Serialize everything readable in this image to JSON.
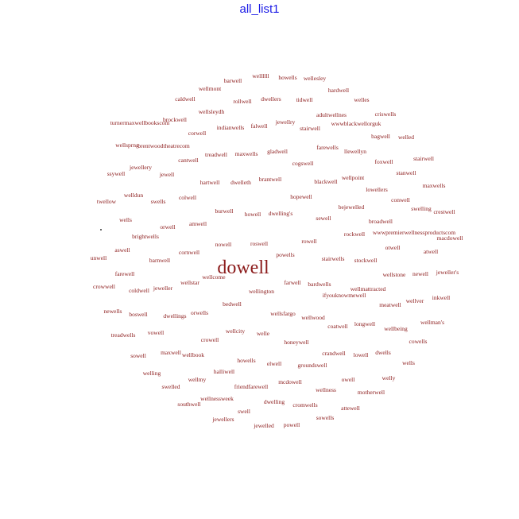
{
  "chart_data": {
    "type": "wordcloud",
    "title": "all_list1",
    "color": "#8b1a1a",
    "words": [
      {
        "text": "wellllll",
        "weight": 1
      },
      {
        "text": "howells",
        "weight": 1
      },
      {
        "text": "wellesley",
        "weight": 1
      },
      {
        "text": "barwell",
        "weight": 1
      },
      {
        "text": "wellmont",
        "weight": 1
      },
      {
        "text": "hardwell",
        "weight": 1
      },
      {
        "text": "caldwell",
        "weight": 1
      },
      {
        "text": "rollwell",
        "weight": 1
      },
      {
        "text": "dwellers",
        "weight": 1
      },
      {
        "text": "tidwell",
        "weight": 1
      },
      {
        "text": "welles",
        "weight": 1
      },
      {
        "text": "wellsleydh",
        "weight": 1
      },
      {
        "text": "adultwellnes",
        "weight": 1
      },
      {
        "text": "criswells",
        "weight": 1
      },
      {
        "text": "brockwell",
        "weight": 1
      },
      {
        "text": "jewellry",
        "weight": 1
      },
      {
        "text": "turnermaxwellbookscom",
        "weight": 1
      },
      {
        "text": "indianwells",
        "weight": 1
      },
      {
        "text": "falwell",
        "weight": 1
      },
      {
        "text": "stairwell",
        "weight": 1
      },
      {
        "text": "wwwblackwellorguk",
        "weight": 1
      },
      {
        "text": "corwell",
        "weight": 1
      },
      {
        "text": "bagwell",
        "weight": 1
      },
      {
        "text": "welled",
        "weight": 1
      },
      {
        "text": "wellsprng",
        "weight": 1
      },
      {
        "text": "brentwoodtheatrecom",
        "weight": 1
      },
      {
        "text": "farewells",
        "weight": 1
      },
      {
        "text": "treadwell",
        "weight": 1
      },
      {
        "text": "maxwells",
        "weight": 1
      },
      {
        "text": "gladwell",
        "weight": 1
      },
      {
        "text": "llewellyn",
        "weight": 1
      },
      {
        "text": "cantwell",
        "weight": 1
      },
      {
        "text": "cogswell",
        "weight": 1
      },
      {
        "text": "foxwell",
        "weight": 1
      },
      {
        "text": "stairwell",
        "weight": 1
      },
      {
        "text": "jewellery",
        "weight": 1
      },
      {
        "text": "ssywell",
        "weight": 1
      },
      {
        "text": "jewell",
        "weight": 1
      },
      {
        "text": "stanwell",
        "weight": 1
      },
      {
        "text": "wellpoint",
        "weight": 1
      },
      {
        "text": "hartwell",
        "weight": 1
      },
      {
        "text": "dwelleth",
        "weight": 1
      },
      {
        "text": "brantwell",
        "weight": 1
      },
      {
        "text": "blackwell",
        "weight": 1
      },
      {
        "text": "maxwells",
        "weight": 1
      },
      {
        "text": "lowellers",
        "weight": 1
      },
      {
        "text": "welldun",
        "weight": 1
      },
      {
        "text": "colwell",
        "weight": 1
      },
      {
        "text": "hopewell",
        "weight": 1
      },
      {
        "text": "conwell",
        "weight": 1
      },
      {
        "text": "twellow",
        "weight": 1
      },
      {
        "text": "swells",
        "weight": 1
      },
      {
        "text": "bejewelled",
        "weight": 1
      },
      {
        "text": "swelling",
        "weight": 1
      },
      {
        "text": "crestwell",
        "weight": 1
      },
      {
        "text": "burwell",
        "weight": 1
      },
      {
        "text": "howell",
        "weight": 1
      },
      {
        "text": "dwelling's",
        "weight": 1
      },
      {
        "text": "sewell",
        "weight": 1
      },
      {
        "text": "wells",
        "weight": 1
      },
      {
        "text": "broadwell",
        "weight": 1
      },
      {
        "text": "amwell",
        "weight": 1
      },
      {
        "text": "orwell",
        "weight": 1
      },
      {
        "text": "brightwells",
        "weight": 1
      },
      {
        "text": "rockwell",
        "weight": 1
      },
      {
        "text": "wwwpremierwellnessproductscom",
        "weight": 1
      },
      {
        "text": "macdowell",
        "weight": 1
      },
      {
        "text": "nowell",
        "weight": 1
      },
      {
        "text": "atwell",
        "weight": 1
      },
      {
        "text": "roswell",
        "weight": 1
      },
      {
        "text": "rowell",
        "weight": 1
      },
      {
        "text": "otwell",
        "weight": 1
      },
      {
        "text": "aswell",
        "weight": 1
      },
      {
        "text": "unwell",
        "weight": 1
      },
      {
        "text": "cornwell",
        "weight": 1
      },
      {
        "text": "powells",
        "weight": 1
      },
      {
        "text": "barnwell",
        "weight": 1
      },
      {
        "text": "stairwells",
        "weight": 1
      },
      {
        "text": "stockwell",
        "weight": 1
      },
      {
        "text": "dowell",
        "weight": 6
      },
      {
        "text": "farewell",
        "weight": 1
      },
      {
        "text": "wellcome",
        "weight": 1
      },
      {
        "text": "wellstone",
        "weight": 1
      },
      {
        "text": "newell",
        "weight": 1
      },
      {
        "text": "jeweller's",
        "weight": 1
      },
      {
        "text": "crowwell",
        "weight": 1
      },
      {
        "text": "wellstar",
        "weight": 1
      },
      {
        "text": "farwell",
        "weight": 1
      },
      {
        "text": "bardwells",
        "weight": 1
      },
      {
        "text": "coldwell",
        "weight": 1
      },
      {
        "text": "jeweller",
        "weight": 1
      },
      {
        "text": "wellington",
        "weight": 1
      },
      {
        "text": "wellmattracted",
        "weight": 1
      },
      {
        "text": "ifyouknowmewell",
        "weight": 1
      },
      {
        "text": "inkwell",
        "weight": 1
      },
      {
        "text": "bedwell",
        "weight": 1
      },
      {
        "text": "meatwell",
        "weight": 1
      },
      {
        "text": "wellver",
        "weight": 1
      },
      {
        "text": "newells",
        "weight": 1
      },
      {
        "text": "boswell",
        "weight": 1
      },
      {
        "text": "dwellings",
        "weight": 1
      },
      {
        "text": "orwells",
        "weight": 1
      },
      {
        "text": "wellsfargo",
        "weight": 1
      },
      {
        "text": "wellwood",
        "weight": 1
      },
      {
        "text": "longwell",
        "weight": 1
      },
      {
        "text": "wellman's",
        "weight": 1
      },
      {
        "text": "coatwell",
        "weight": 1
      },
      {
        "text": "wellbeing",
        "weight": 1
      },
      {
        "text": "treadwells",
        "weight": 1
      },
      {
        "text": "vowell",
        "weight": 1
      },
      {
        "text": "wellcity",
        "weight": 1
      },
      {
        "text": "welle",
        "weight": 1
      },
      {
        "text": "crowell",
        "weight": 1
      },
      {
        "text": "honeywell",
        "weight": 1
      },
      {
        "text": "cowells",
        "weight": 1
      },
      {
        "text": "sowell",
        "weight": 1
      },
      {
        "text": "maxwell",
        "weight": 1
      },
      {
        "text": "wellbook",
        "weight": 1
      },
      {
        "text": "crandwell",
        "weight": 1
      },
      {
        "text": "lowell",
        "weight": 1
      },
      {
        "text": "dwells",
        "weight": 1
      },
      {
        "text": "howells",
        "weight": 1
      },
      {
        "text": "elwell",
        "weight": 1
      },
      {
        "text": "groundswell",
        "weight": 1
      },
      {
        "text": "wells",
        "weight": 1
      },
      {
        "text": "welling",
        "weight": 1
      },
      {
        "text": "halliwell",
        "weight": 1
      },
      {
        "text": "welly",
        "weight": 1
      },
      {
        "text": "owell",
        "weight": 1
      },
      {
        "text": "wellmy",
        "weight": 1
      },
      {
        "text": "mcdowell",
        "weight": 1
      },
      {
        "text": "swelled",
        "weight": 1
      },
      {
        "text": "friendfarewell",
        "weight": 1
      },
      {
        "text": "wellness",
        "weight": 1
      },
      {
        "text": "motherwell",
        "weight": 1
      },
      {
        "text": "wellnessweek",
        "weight": 1
      },
      {
        "text": "dwelling",
        "weight": 1
      },
      {
        "text": "southwell",
        "weight": 1
      },
      {
        "text": "swell",
        "weight": 1
      },
      {
        "text": "cromwells",
        "weight": 1
      },
      {
        "text": "attewell",
        "weight": 1
      },
      {
        "text": "jewellers",
        "weight": 1
      },
      {
        "text": "sowells",
        "weight": 1
      },
      {
        "text": "jewelled",
        "weight": 1
      },
      {
        "text": "powell",
        "weight": 1
      }
    ]
  }
}
